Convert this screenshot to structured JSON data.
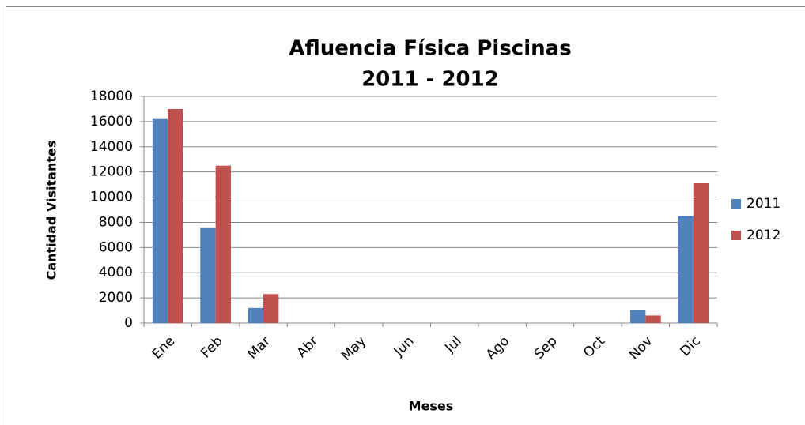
{
  "chart_data": {
    "type": "bar",
    "title": [
      "Afluencia Física Piscinas",
      "2011 - 2012"
    ],
    "x_label": "Meses",
    "y_label": "Cantidad Visitantes",
    "categories": [
      "Ene",
      "Feb",
      "Mar",
      "Abr",
      "May",
      "Jun",
      "Jul",
      "Ago",
      "Sep",
      "Oct",
      "Nov",
      "Dic"
    ],
    "series": [
      {
        "name": "2011",
        "color": "#4f81bd",
        "values": [
          16200,
          7600,
          1200,
          0,
          0,
          0,
          0,
          0,
          0,
          0,
          1050,
          8500
        ]
      },
      {
        "name": "2012",
        "color": "#c0504d",
        "values": [
          17000,
          12500,
          2300,
          0,
          0,
          0,
          0,
          0,
          0,
          0,
          600,
          11100
        ]
      }
    ],
    "ylim": [
      0,
      18000
    ],
    "yticks": [
      0,
      2000,
      4000,
      6000,
      8000,
      10000,
      12000,
      14000,
      16000,
      18000
    ],
    "grid": true,
    "legend": "right"
  }
}
